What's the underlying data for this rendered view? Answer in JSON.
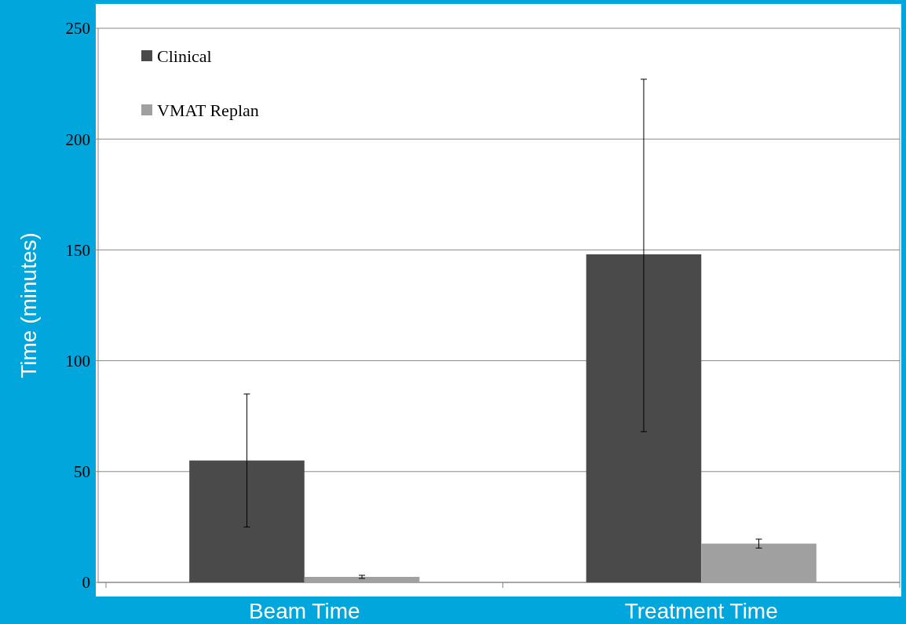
{
  "chart_data": {
    "type": "bar",
    "ylabel": "Time (minutes)",
    "categories": [
      "Beam Time",
      "Treatment Time"
    ],
    "series": [
      {
        "name": "Clinical",
        "color": "#4a4a4a",
        "values": [
          55,
          148
        ],
        "errors": [
          [
            25,
            85
          ],
          [
            68,
            227
          ]
        ]
      },
      {
        "name": "VMAT Replan",
        "color": "#a0a0a0",
        "values": [
          2.5,
          17.5
        ],
        "errors": [
          [
            1.8,
            3.2
          ],
          [
            15.5,
            19.5
          ]
        ]
      }
    ],
    "ylim": [
      0,
      250
    ],
    "yticks": [
      0,
      50,
      100,
      150,
      200,
      250
    ],
    "grid": "y",
    "legend": "top left"
  }
}
